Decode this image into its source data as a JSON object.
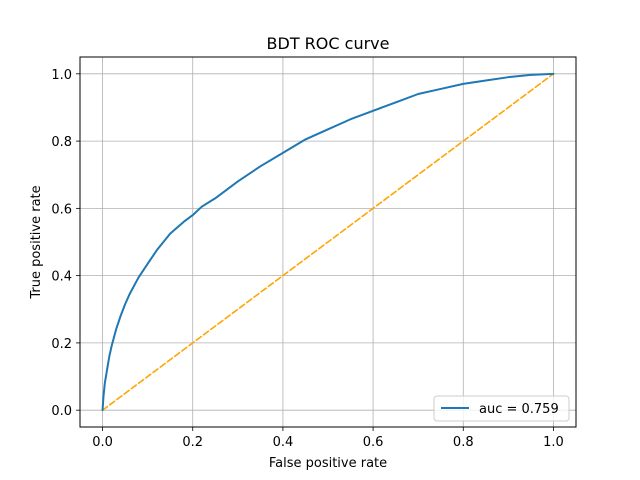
{
  "chart_data": {
    "type": "line",
    "title": "BDT ROC curve",
    "xlabel": "False positive rate",
    "ylabel": "True positive rate",
    "xlim": [
      -0.05,
      1.05
    ],
    "ylim": [
      -0.05,
      1.05
    ],
    "xticks": [
      "0.0",
      "0.2",
      "0.4",
      "0.6",
      "0.8",
      "1.0"
    ],
    "yticks": [
      "0.0",
      "0.2",
      "0.4",
      "0.6",
      "0.8",
      "1.0"
    ],
    "grid": true,
    "legend_position": "lower-right",
    "series": [
      {
        "name": "auc = 0.759",
        "color": "#1f77b4",
        "style": "solid",
        "x": [
          0,
          0.002,
          0.005,
          0.01,
          0.015,
          0.02,
          0.03,
          0.04,
          0.05,
          0.06,
          0.08,
          0.1,
          0.12,
          0.15,
          0.18,
          0.2,
          0.22,
          0.25,
          0.3,
          0.35,
          0.4,
          0.45,
          0.5,
          0.55,
          0.6,
          0.65,
          0.7,
          0.75,
          0.8,
          0.85,
          0.9,
          0.95,
          1.0
        ],
        "y": [
          0,
          0.04,
          0.08,
          0.12,
          0.16,
          0.19,
          0.24,
          0.28,
          0.315,
          0.345,
          0.395,
          0.435,
          0.475,
          0.525,
          0.56,
          0.58,
          0.605,
          0.63,
          0.68,
          0.725,
          0.765,
          0.805,
          0.835,
          0.865,
          0.89,
          0.915,
          0.94,
          0.955,
          0.97,
          0.98,
          0.99,
          0.997,
          1.0
        ]
      },
      {
        "name": "",
        "color": "#ffa500",
        "style": "dashed",
        "x": [
          0,
          1
        ],
        "y": [
          0,
          1
        ]
      }
    ],
    "legend": [
      {
        "label": "auc = 0.759",
        "color": "#1f77b4"
      }
    ]
  }
}
